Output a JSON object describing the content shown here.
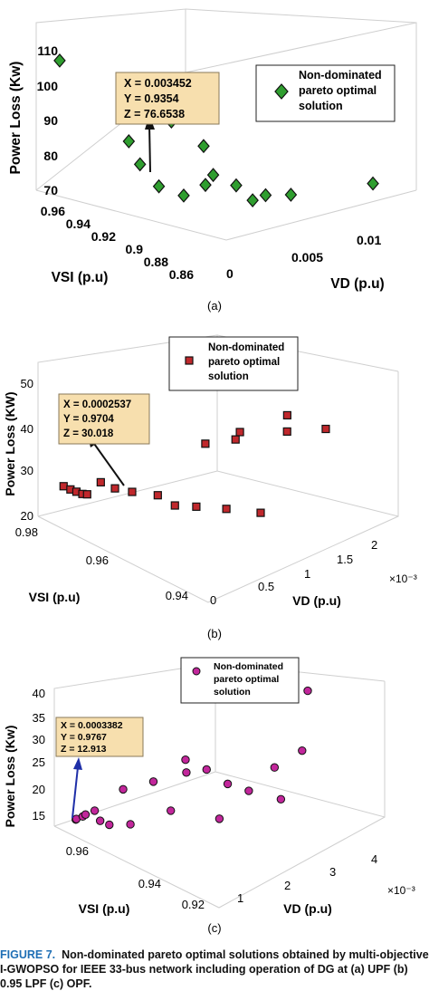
{
  "caption": {
    "label": "FIGURE 7.",
    "text": "Non-dominated pareto optimal solutions obtained by multi-objective I-GWOPSO for IEEE 33-bus network including operation of DG at (a) UPF (b) 0.95 LPF (c) OPF."
  },
  "colors": {
    "a_marker": "#2f9e2f",
    "b_marker": "#c0282c",
    "c_marker": "#c2269b",
    "datatip_bg": "#f7dfae"
  },
  "chart_data": [
    {
      "type": "scatter",
      "panel_label": "(a)",
      "zlabel": "Power Loss (Kw)",
      "xlabel": "VSI (p.u)",
      "ylabel": "VD (p.u)",
      "z_ticks": [
        "70",
        "80",
        "90",
        "100",
        "110"
      ],
      "vsi_ticks": [
        "0.96",
        "0.94",
        "0.92",
        "0.9",
        "0.88",
        "0.86"
      ],
      "vd_ticks": [
        "0",
        "0.005",
        "0.01"
      ],
      "vd_multiplier": "",
      "legend": [
        "Non-dominated",
        "pareto optimal",
        "solution"
      ],
      "datatip": {
        "x": "0.003452",
        "y": "0.9354",
        "z": "76.6538"
      },
      "datatip_lines": [
        "X = 0.003452",
        "Y = 0.9354",
        "Z = 76.6538"
      ],
      "marker": "diamond",
      "points": [
        {
          "vd": 0.0005,
          "vsi": 0.952,
          "z": 107.7
        },
        {
          "vd": 0.0002,
          "vsi": 0.913,
          "z": 90.5
        },
        {
          "vd": 0.0011,
          "vsi": 0.905,
          "z": 77.6
        },
        {
          "vd": 0.003452,
          "vsi": 0.9354,
          "z": 76.6538
        },
        {
          "vd": 0.0026,
          "vsi": 0.905,
          "z": 73.1
        },
        {
          "vd": 0.003,
          "vsi": 0.898,
          "z": 87.8
        },
        {
          "vd": 0.0045,
          "vsi": 0.928,
          "z": 88.7
        },
        {
          "vd": 0.0038,
          "vsi": 0.904,
          "z": 74.8
        },
        {
          "vd": 0.0045,
          "vsi": 0.906,
          "z": 76.5
        },
        {
          "vd": 0.0052,
          "vsi": 0.9,
          "z": 73.5
        },
        {
          "vd": 0.0047,
          "vsi": 0.887,
          "z": 71.7
        },
        {
          "vd": 0.0056,
          "vsi": 0.888,
          "z": 71.9
        },
        {
          "vd": 0.0069,
          "vsi": 0.886,
          "z": 70.7
        },
        {
          "vd": 0.0106,
          "vsi": 0.875,
          "z": 70.9
        }
      ]
    },
    {
      "type": "scatter",
      "panel_label": "(b)",
      "zlabel": "Power Loss (KW)",
      "xlabel": "VSI (p.u)",
      "ylabel": "VD (p.u)",
      "z_ticks": [
        "20",
        "30",
        "40",
        "50"
      ],
      "vsi_ticks": [
        "0.98",
        "0.96",
        "0.94"
      ],
      "vd_ticks": [
        "0",
        "0.5",
        "1",
        "1.5",
        "2"
      ],
      "vd_multiplier": "×10⁻³",
      "legend": [
        "Non-dominated",
        "pareto optimal",
        "solution"
      ],
      "datatip": {
        "x": "0.0002537",
        "y": "0.9704",
        "z": "30.018"
      },
      "datatip_lines": [
        "X = 0.0002537",
        "Y = 0.9704",
        "Z = 30.018"
      ],
      "marker": "square",
      "points": [
        {
          "vd": 5e-05,
          "vsi": 0.975,
          "z": 28.7
        },
        {
          "vd": 8e-05,
          "vsi": 0.974,
          "z": 28.2
        },
        {
          "vd": 0.0001,
          "vsi": 0.973,
          "z": 28.0
        },
        {
          "vd": 0.00012,
          "vsi": 0.972,
          "z": 27.8
        },
        {
          "vd": 0.00015,
          "vsi": 0.9715,
          "z": 27.7
        },
        {
          "vd": 0.0002537,
          "vsi": 0.9704,
          "z": 30.018
        },
        {
          "vd": 0.0003,
          "vsi": 0.968,
          "z": 29.4
        },
        {
          "vd": 0.0004,
          "vsi": 0.966,
          "z": 28.7
        },
        {
          "vd": 0.0005,
          "vsi": 0.962,
          "z": 29.0
        },
        {
          "vd": 0.0006,
          "vsi": 0.96,
          "z": 26.8
        },
        {
          "vd": 0.0007,
          "vsi": 0.957,
          "z": 27.1
        },
        {
          "vd": 0.0009,
          "vsi": 0.954,
          "z": 26.3
        },
        {
          "vd": 0.0011,
          "vsi": 0.95,
          "z": 25.6
        },
        {
          "vd": 0.0011,
          "vsi": 0.963,
          "z": 34.8
        },
        {
          "vd": 0.0014,
          "vsi": 0.962,
          "z": 33.6
        },
        {
          "vd": 0.0015,
          "vsi": 0.963,
          "z": 33.9
        },
        {
          "vd": 0.0018,
          "vsi": 0.958,
          "z": 33.8
        },
        {
          "vd": 0.0019,
          "vsi": 0.96,
          "z": 35.6
        },
        {
          "vd": 0.0021,
          "vsi": 0.955,
          "z": 33.2
        }
      ]
    },
    {
      "type": "scatter",
      "panel_label": "(c)",
      "zlabel": "Power Loss (Kw)",
      "xlabel": "VSI (p.u)",
      "ylabel": "VD (p.u)",
      "z_ticks": [
        "15",
        "20",
        "25",
        "30",
        "35",
        "40"
      ],
      "vsi_ticks": [
        "0.96",
        "0.94",
        "0.92"
      ],
      "vd_ticks": [
        "1",
        "2",
        "3",
        "4"
      ],
      "vd_multiplier": "×10⁻³",
      "legend": [
        "Non-dominated",
        "pareto optimal",
        "solution"
      ],
      "datatip": {
        "x": "0.0003382",
        "y": "0.9767",
        "z": "12.913"
      },
      "datatip_lines": [
        "X = 0.0003382",
        "Y = 0.9767",
        "Z = 12.913"
      ],
      "marker": "circle",
      "points": [
        {
          "vd": 0.0003382,
          "vsi": 0.9767,
          "z": 12.913
        },
        {
          "vd": 0.0003,
          "vsi": 0.976,
          "z": 13.4
        },
        {
          "vd": 0.0004,
          "vsi": 0.975,
          "z": 13.8
        },
        {
          "vd": 0.0004,
          "vsi": 0.974,
          "z": 14.5
        },
        {
          "vd": 0.0005,
          "vsi": 0.972,
          "z": 15.5
        },
        {
          "vd": 0.0005,
          "vsi": 0.97,
          "z": 13.9
        },
        {
          "vd": 0.0006,
          "vsi": 0.968,
          "z": 13.2
        },
        {
          "vd": 0.0008,
          "vsi": 0.963,
          "z": 13.9
        },
        {
          "vd": 0.0009,
          "vsi": 0.967,
          "z": 19.8
        },
        {
          "vd": 0.0012,
          "vsi": 0.96,
          "z": 22.2
        },
        {
          "vd": 0.0013,
          "vsi": 0.955,
          "z": 17.0
        },
        {
          "vd": 0.0015,
          "vsi": 0.952,
          "z": 25.2
        },
        {
          "vd": 0.0017,
          "vsi": 0.955,
          "z": 26.2
        },
        {
          "vd": 0.0019,
          "vsi": 0.95,
          "z": 24.7
        },
        {
          "vd": 0.0018,
          "vsi": 0.944,
          "z": 16.3
        },
        {
          "vd": 0.0021,
          "vsi": 0.945,
          "z": 22.2
        },
        {
          "vd": 0.0023,
          "vsi": 0.94,
          "z": 21.3
        },
        {
          "vd": 0.0028,
          "vsi": 0.935,
          "z": 18.8
        },
        {
          "vd": 0.003,
          "vsi": 0.94,
          "z": 23.3
        },
        {
          "vd": 0.0036,
          "vsi": 0.938,
          "z": 24.9
        },
        {
          "vd": 0.0042,
          "vsi": 0.944,
          "z": 33.4
        }
      ]
    }
  ]
}
